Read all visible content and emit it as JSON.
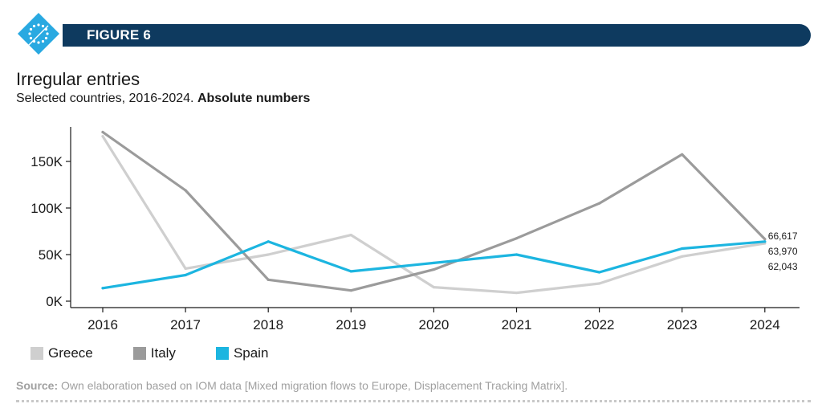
{
  "header": {
    "figure_label": "FIGURE 6",
    "logo_icon": "eu-stars-diamond-icon",
    "logo_color": "#29a9e1",
    "bar_color": "#0e3a5f"
  },
  "chart_data": {
    "type": "line",
    "title": "Irregular entries",
    "subtitle_prefix": "Selected countries, 2016-2024.",
    "subtitle_bold": "Absolute numbers",
    "categories": [
      "2016",
      "2017",
      "2018",
      "2019",
      "2020",
      "2021",
      "2022",
      "2023",
      "2024"
    ],
    "y_ticks": [
      {
        "value": 0,
        "label": "0K"
      },
      {
        "value": 50000,
        "label": "50K"
      },
      {
        "value": 100000,
        "label": "100K"
      },
      {
        "value": 150000,
        "label": "150K"
      }
    ],
    "ylim": [
      0,
      190000
    ],
    "series": [
      {
        "name": "Greece",
        "color": "#cfcfcf",
        "values": [
          177000,
          35000,
          50000,
          71000,
          15000,
          9000,
          19000,
          48000,
          62043
        ]
      },
      {
        "name": "Italy",
        "color": "#9b9b9b",
        "values": [
          181500,
          119000,
          23000,
          11500,
          34000,
          67500,
          105000,
          157500,
          66617
        ]
      },
      {
        "name": "Spain",
        "color": "#1cb5e0",
        "values": [
          14000,
          28000,
          64000,
          32000,
          41000,
          50000,
          31000,
          56500,
          63970
        ]
      }
    ],
    "end_labels": [
      "66,617",
      "63,970",
      "62,043"
    ],
    "legend_position": "bottom-left"
  },
  "source": {
    "label": "Source:",
    "text": " Own elaboration based on IOM data [Mixed migration flows to Europe, Displacement Tracking Matrix]."
  }
}
